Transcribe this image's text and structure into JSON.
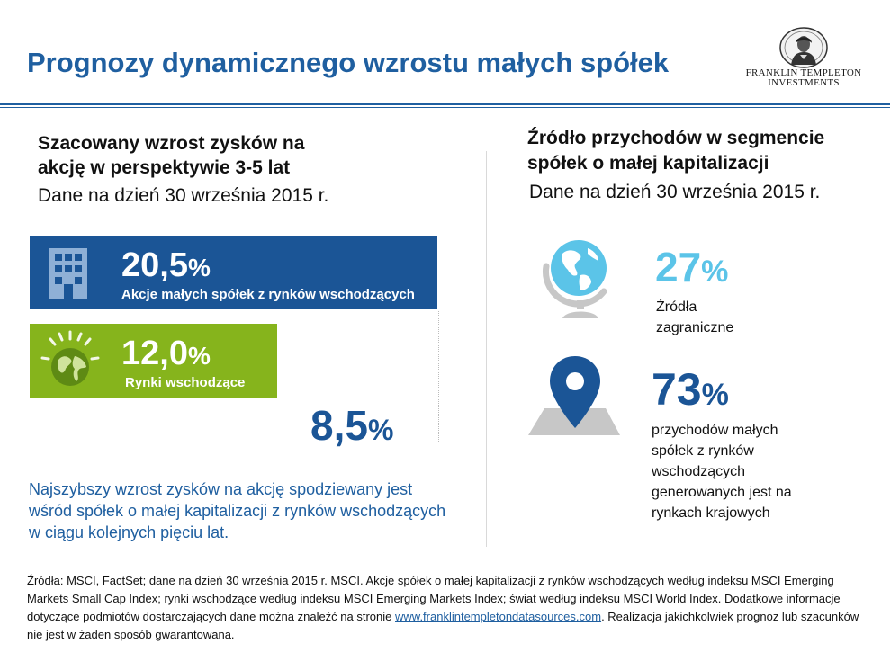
{
  "header": {
    "title": "Prognozy dynamicznego wzrostu małych spółek",
    "logo_line1": "FRANKLIN TEMPLETON",
    "logo_line2": "INVESTMENTS"
  },
  "left": {
    "heading_line1": "Szacowany wzrost zysków na",
    "heading_line2": "akcję w perspektywie 3-5 lat",
    "date": "Dane na dzień 30 września 2015 r.",
    "bars": [
      {
        "value": "20,5",
        "unit": "%",
        "label": "Akcje małych spółek z rynków wschodzących",
        "color": "#1b5596",
        "icon": "building-icon"
      },
      {
        "value": "12,0",
        "unit": "%",
        "label": "Rynki wschodzące",
        "color": "#86b41c",
        "icon": "globe-icon"
      },
      {
        "value": "8,5",
        "unit": "%",
        "label": "",
        "color": "#1b5596"
      }
    ],
    "note": "Najszybszy wzrost zysków na akcję spodziewany jest wśród spółek o małej kapitalizacji z rynków wschodzących w ciągu kolejnych pięciu lat."
  },
  "right": {
    "heading_line1": "Źródło przychodów w segmencie",
    "heading_line2": "spółek o małej kapitalizacji",
    "date": "Dane na dzień 30 września 2015 r.",
    "items": [
      {
        "value": "27",
        "unit": "%",
        "line1": "Źródła",
        "line2": "zagraniczne",
        "color": "#5bc4e8",
        "icon": "globe-stand-icon"
      },
      {
        "value": "73",
        "unit": "%",
        "line1": "przychodów małych",
        "line2": "spółek z rynków",
        "line3": "wschodzących",
        "line4": "generowanych jest na",
        "line5": "rynkach krajowych",
        "color": "#1b5596",
        "icon": "map-pin-icon"
      }
    ]
  },
  "footer": {
    "text_before": "Źródła: MSCI, FactSet; dane na dzień 30 września 2015 r. MSCI. Akcje spółek o małej kapitalizacji z rynków wschodzących według indeksu MSCI Emerging Markets Small Cap Index; rynki wschodzące według indeksu MSCI Emerging Markets Index; świat według indeksu MSCI World Index. Dodatkowe informacje dotyczące podmiotów dostarczających dane można znaleźć na stronie ",
    "link": "www.franklintempletondatasources.com",
    "text_after": ". Realizacja jakichkolwiek prognoz lub szacunków nie jest w żaden sposób gwarantowana."
  }
}
